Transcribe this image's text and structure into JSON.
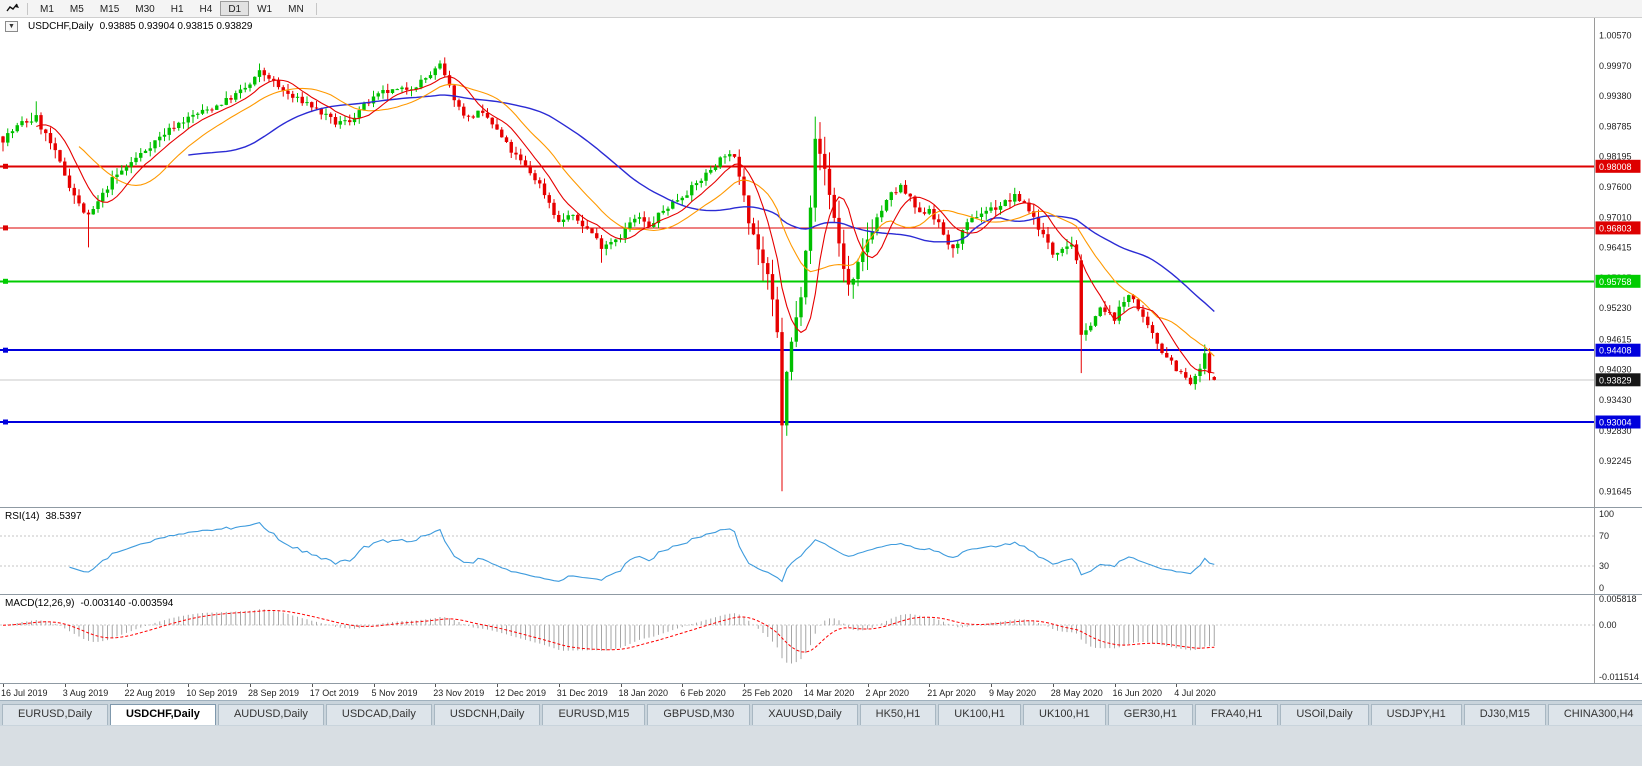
{
  "toolbar": {
    "timeframes": [
      "M1",
      "M5",
      "M15",
      "M30",
      "H1",
      "H4",
      "D1",
      "W1",
      "MN"
    ],
    "active": "D1"
  },
  "chart": {
    "title": "USDCHF,Daily",
    "ohlc_text": "0.93885 0.93904 0.93815 0.93829",
    "dropdown_glyph": "▼",
    "y_axis_labels": [
      "1.00570",
      "0.99970",
      "0.99380",
      "0.98785",
      "0.98195",
      "0.97600",
      "0.97010",
      "0.96415",
      "0.95825",
      "0.95230",
      "0.94615",
      "0.94030",
      "0.93430",
      "0.92830",
      "0.92245",
      "0.91645"
    ],
    "levels": [
      {
        "value": 0.98008,
        "label": "0.98008",
        "color": "#dd0000",
        "width": 2
      },
      {
        "value": 0.96803,
        "label": "0.96803",
        "color": "#dd0000",
        "width": 1
      },
      {
        "value": 0.95758,
        "label": "0.95758",
        "color": "#00cc00",
        "width": 2
      },
      {
        "value": 0.94408,
        "label": "0.94408",
        "color": "#0000dd",
        "width": 2
      },
      {
        "value": 0.93004,
        "label": "0.93004",
        "color": "#0000dd",
        "width": 2
      }
    ],
    "bid_label": "0.93829",
    "bid_label_bg": "#161616",
    "colors": {
      "up": "#00bf00",
      "down": "#e60000",
      "bid_line": "#c9c9c9",
      "scale_text": "#222222"
    },
    "x_axis_labels": [
      {
        "bar": 0,
        "text": "16 Jul 2019"
      },
      {
        "bar": 13,
        "text": "3 Aug 2019"
      },
      {
        "bar": 26,
        "text": "22 Aug 2019"
      },
      {
        "bar": 39,
        "text": "10 Sep 2019"
      },
      {
        "bar": 52,
        "text": "28 Sep 2019"
      },
      {
        "bar": 65,
        "text": "17 Oct 2019"
      },
      {
        "bar": 78,
        "text": "5 Nov 2019"
      },
      {
        "bar": 91,
        "text": "23 Nov 2019"
      },
      {
        "bar": 104,
        "text": "12 Dec 2019"
      },
      {
        "bar": 117,
        "text": "31 Dec 2019"
      },
      {
        "bar": 130,
        "text": "18 Jan 2020"
      },
      {
        "bar": 143,
        "text": "6 Feb 2020"
      },
      {
        "bar": 156,
        "text": "25 Feb 2020"
      },
      {
        "bar": 169,
        "text": "14 Mar 2020"
      },
      {
        "bar": 182,
        "text": "2 Apr 2020"
      },
      {
        "bar": 195,
        "text": "21 Apr 2020"
      },
      {
        "bar": 208,
        "text": "9 May 2020"
      },
      {
        "bar": 221,
        "text": "28 May 2020"
      },
      {
        "bar": 234,
        "text": "16 Jun 2020"
      },
      {
        "bar": 247,
        "text": "4 Jul 2020"
      }
    ]
  },
  "rsi": {
    "label": "RSI(14)",
    "value_text": "38.5397",
    "period": 14,
    "color": "#3e9bdd",
    "scale_labels": [
      {
        "v": 100,
        "text": "100"
      },
      {
        "v": 70,
        "text": "70"
      },
      {
        "v": 30,
        "text": "30"
      },
      {
        "v": 0,
        "text": "0"
      }
    ],
    "level_lines": [
      70,
      30
    ]
  },
  "macd": {
    "label": "MACD(12,26,9)",
    "values_text": "-0.003140 -0.003594",
    "fast": 12,
    "slow": 26,
    "signal_period": 9,
    "hist_color": "#a6a6a6",
    "signal_color": "#ff0000",
    "axis_max": 0.005818,
    "axis_min": -0.011514,
    "scale_labels": [
      {
        "v": 0.005818,
        "text": "0.005818"
      },
      {
        "v": 0,
        "text": "0.00"
      },
      {
        "v": -0.011514,
        "text": "-0.011514"
      }
    ]
  },
  "tabs": {
    "active_index": 1,
    "items": [
      "EURUSD,Daily",
      "USDCHF,Daily",
      "AUDUSD,Daily",
      "USDCAD,Daily",
      "USDCNH,Daily",
      "EURUSD,M15",
      "GBPUSD,M30",
      "XAUUSD,Daily",
      "HK50,H1",
      "UK100,H1",
      "UK100,H1",
      "GER30,H1",
      "FRA40,H1",
      "USOil,Daily",
      "USDJPY,H1",
      "DJ30,M15",
      "CHINA300,H4"
    ]
  },
  "chart_data": {
    "type": "candlestick",
    "symbol": "USDCHF",
    "timeframe": "Daily",
    "bars": 256,
    "last_bar": {
      "open": 0.93885,
      "high": 0.93904,
      "low": 0.93815,
      "close": 0.93829
    },
    "price_axis": {
      "min": 0.9135,
      "max": 1.009
    },
    "seed": 7,
    "moving_averages": [
      {
        "period": 8,
        "color": "#e60000"
      },
      {
        "period": 17,
        "color": "#ff9900"
      },
      {
        "period": 40,
        "color": "#2b2bd4"
      }
    ],
    "anchors": [
      [
        0,
        0.9855
      ],
      [
        4,
        0.9885
      ],
      [
        7,
        0.9895
      ],
      [
        10,
        0.9845
      ],
      [
        13,
        0.9785
      ],
      [
        16,
        0.9725
      ],
      [
        18,
        0.97
      ],
      [
        20,
        0.973
      ],
      [
        23,
        0.9775
      ],
      [
        26,
        0.98
      ],
      [
        29,
        0.9825
      ],
      [
        32,
        0.985
      ],
      [
        36,
        0.988
      ],
      [
        40,
        0.99
      ],
      [
        44,
        0.9915
      ],
      [
        48,
        0.9935
      ],
      [
        52,
        0.996
      ],
      [
        54,
        0.9985
      ],
      [
        56,
        0.9975
      ],
      [
        58,
        0.9955
      ],
      [
        61,
        0.9935
      ],
      [
        64,
        0.9925
      ],
      [
        67,
        0.9905
      ],
      [
        70,
        0.9885
      ],
      [
        73,
        0.989
      ],
      [
        76,
        0.992
      ],
      [
        80,
        0.9945
      ],
      [
        84,
        0.995
      ],
      [
        87,
        0.996
      ],
      [
        90,
        0.998
      ],
      [
        92,
        0.9998
      ],
      [
        94,
        0.9955
      ],
      [
        96,
        0.9915
      ],
      [
        98,
        0.9895
      ],
      [
        100,
        0.9905
      ],
      [
        102,
        0.9895
      ],
      [
        104,
        0.987
      ],
      [
        107,
        0.983
      ],
      [
        110,
        0.98
      ],
      [
        113,
        0.9765
      ],
      [
        115,
        0.973
      ],
      [
        117,
        0.969
      ],
      [
        119,
        0.9705
      ],
      [
        121,
        0.9695
      ],
      [
        124,
        0.967
      ],
      [
        126,
        0.9645
      ],
      [
        128,
        0.9655
      ],
      [
        130,
        0.9665
      ],
      [
        132,
        0.969
      ],
      [
        134,
        0.97
      ],
      [
        136,
        0.968
      ],
      [
        138,
        0.9705
      ],
      [
        141,
        0.973
      ],
      [
        144,
        0.975
      ],
      [
        147,
        0.9775
      ],
      [
        150,
        0.9805
      ],
      [
        152,
        0.9825
      ],
      [
        154,
        0.9815
      ],
      [
        155,
        0.979
      ],
      [
        156,
        0.9755
      ],
      [
        157,
        0.9705
      ],
      [
        158,
        0.967
      ],
      [
        159,
        0.964
      ],
      [
        160,
        0.961
      ],
      [
        161,
        0.9575
      ],
      [
        162,
        0.953
      ],
      [
        163,
        0.947
      ],
      [
        164,
        0.93
      ],
      [
        165,
        0.939
      ],
      [
        166,
        0.9455
      ],
      [
        167,
        0.95
      ],
      [
        168,
        0.956
      ],
      [
        169,
        0.965
      ],
      [
        170,
        0.973
      ],
      [
        171,
        0.9845
      ],
      [
        172,
        0.9825
      ],
      [
        173,
        0.9795
      ],
      [
        174,
        0.975
      ],
      [
        175,
        0.97
      ],
      [
        176,
        0.965
      ],
      [
        177,
        0.9605
      ],
      [
        178,
        0.9565
      ],
      [
        179,
        0.957
      ],
      [
        180,
        0.96
      ],
      [
        181,
        0.9625
      ],
      [
        182,
        0.966
      ],
      [
        183,
        0.9685
      ],
      [
        185,
        0.9715
      ],
      [
        187,
        0.9745
      ],
      [
        189,
        0.976
      ],
      [
        191,
        0.9735
      ],
      [
        193,
        0.9705
      ],
      [
        195,
        0.972
      ],
      [
        197,
        0.9685
      ],
      [
        199,
        0.965
      ],
      [
        200,
        0.9635
      ],
      [
        201,
        0.9655
      ],
      [
        203,
        0.9685
      ],
      [
        205,
        0.9705
      ],
      [
        207,
        0.9715
      ],
      [
        209,
        0.972
      ],
      [
        211,
        0.973
      ],
      [
        213,
        0.974
      ],
      [
        215,
        0.973
      ],
      [
        217,
        0.97
      ],
      [
        219,
        0.9665
      ],
      [
        221,
        0.963
      ],
      [
        223,
        0.9645
      ],
      [
        225,
        0.965
      ],
      [
        226,
        0.962
      ],
      [
        227,
        0.9465
      ],
      [
        228,
        0.9475
      ],
      [
        229,
        0.9495
      ],
      [
        231,
        0.952
      ],
      [
        233,
        0.951
      ],
      [
        234,
        0.9505
      ],
      [
        235,
        0.952
      ],
      [
        236,
        0.9535
      ],
      [
        237,
        0.955
      ],
      [
        238,
        0.9545
      ],
      [
        239,
        0.952
      ],
      [
        240,
        0.95
      ],
      [
        241,
        0.9485
      ],
      [
        242,
        0.947
      ],
      [
        243,
        0.9455
      ],
      [
        244,
        0.944
      ],
      [
        245,
        0.943
      ],
      [
        246,
        0.942
      ],
      [
        247,
        0.9405
      ],
      [
        248,
        0.9395
      ],
      [
        249,
        0.9385
      ],
      [
        250,
        0.9375
      ],
      [
        251,
        0.9385
      ],
      [
        252,
        0.9405
      ],
      [
        253,
        0.943
      ],
      [
        254,
        0.9395
      ],
      [
        255,
        0.93829
      ]
    ],
    "forced_wicks": [
      {
        "bar": 7,
        "type": "high",
        "price": 0.9928
      },
      {
        "bar": 18,
        "type": "low",
        "price": 0.9642
      },
      {
        "bar": 54,
        "type": "high",
        "price": 1.0002
      },
      {
        "bar": 92,
        "type": "high",
        "price": 1.0008
      },
      {
        "bar": 126,
        "type": "low",
        "price": 0.9612
      },
      {
        "bar": 164,
        "type": "low",
        "price": 0.9165
      },
      {
        "bar": 171,
        "type": "high",
        "price": 0.9898
      },
      {
        "bar": 200,
        "type": "low",
        "price": 0.9622
      },
      {
        "bar": 227,
        "type": "low",
        "price": 0.9396
      },
      {
        "bar": 253,
        "type": "high",
        "price": 0.9452
      }
    ],
    "volatility_zones": [
      {
        "from": 0,
        "to": 19,
        "vol": 0.0016
      },
      {
        "from": 20,
        "to": 154,
        "vol": 0.0012
      },
      {
        "from": 155,
        "to": 183,
        "vol": 0.0032
      },
      {
        "from": 184,
        "to": 225,
        "vol": 0.0014
      },
      {
        "from": 226,
        "to": 255,
        "vol": 0.0013
      }
    ]
  }
}
